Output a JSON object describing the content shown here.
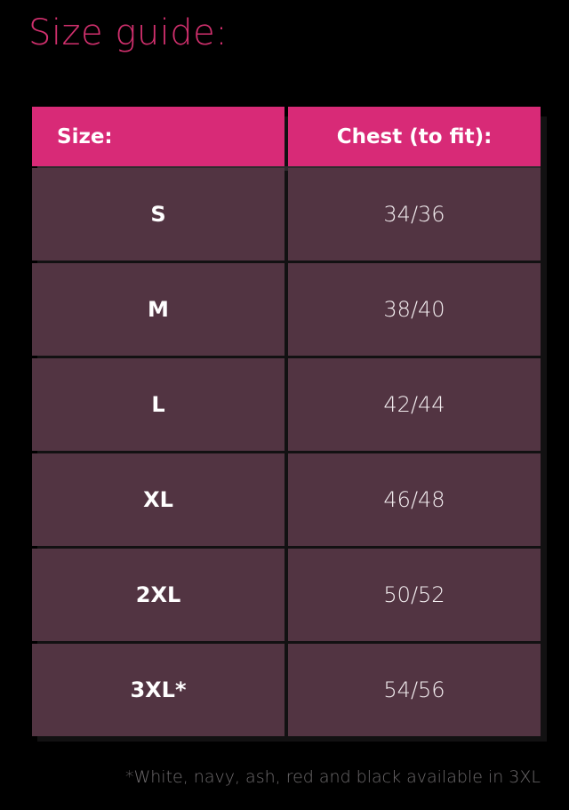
{
  "title": "Size guide:",
  "colors": {
    "accent": "#d82a77",
    "row": "#523442",
    "background": "#000000"
  },
  "table": {
    "headers": [
      "Size:",
      "Chest (to fit):"
    ],
    "rows": [
      {
        "size": "S",
        "chest": "34/36"
      },
      {
        "size": "M",
        "chest": "38/40"
      },
      {
        "size": "L",
        "chest": "42/44"
      },
      {
        "size": "XL",
        "chest": "46/48"
      },
      {
        "size": "2XL",
        "chest": "50/52"
      },
      {
        "size": "3XL*",
        "chest": "54/56"
      }
    ]
  },
  "footnote": "*White, navy, ash, red and black available in 3XL"
}
